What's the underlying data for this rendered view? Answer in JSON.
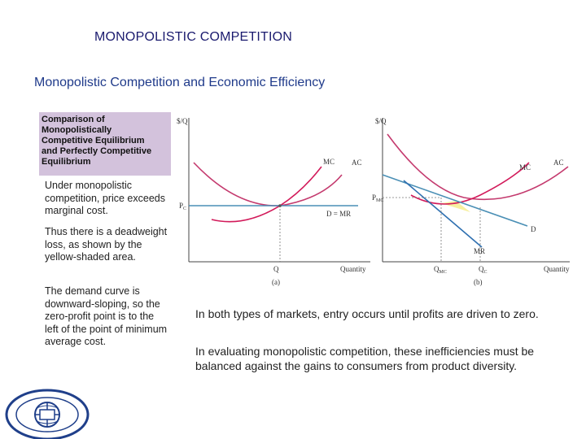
{
  "slide": {
    "title": "MONOPOLISTIC COMPETITION",
    "subtitle": "Monopolistic Competition and Economic Efficiency"
  },
  "caption_lines": [
    "Comparison of",
    "Monopolistically",
    "Competitive Equilibrium",
    "and Perfectly Competitive",
    "Equilibrium"
  ],
  "bullets": [
    "Under monopolistic competition, price exceeds marginal cost.",
    "Thus there is a deadweight loss, as shown by the yellow-shaded area.",
    "The demand curve is downward-sloping, so the zero-profit point is to the left of the point of minimum average cost."
  ],
  "right_text": [
    "In both types of markets, entry occurs until profits are driven to zero.",
    "In evaluating monopolistic competition, these inefficiencies must be balanced against the gains to consumers from product diversity."
  ],
  "chart_data": [
    {
      "type": "line",
      "panel_label": "(a)",
      "ylabel": "$/Q",
      "xlabel": "Quantity",
      "x_tick_labels": [
        "Q"
      ],
      "y_tick_labels": [
        "P_C"
      ],
      "series": [
        {
          "name": "MC",
          "shape": "rising curve through minimum of AC"
        },
        {
          "name": "AC",
          "shape": "U-shaped"
        },
        {
          "name": "D = MR",
          "shape": "horizontal at P_C"
        }
      ],
      "colors": {
        "MC": "#d21a5a",
        "AC": "#c43a6e",
        "demand": "#4a8fb5"
      }
    },
    {
      "type": "line",
      "panel_label": "(b)",
      "ylabel": "$/Q",
      "xlabel": "Quantity",
      "x_tick_labels": [
        "Q_MC",
        "Q_C"
      ],
      "y_tick_labels": [
        "P_MC"
      ],
      "series": [
        {
          "name": "MC"
        },
        {
          "name": "AC"
        },
        {
          "name": "D",
          "shape": "downward-sloping, tangent to AC"
        },
        {
          "name": "MR",
          "shape": "steeper downward-sloping"
        }
      ],
      "shaded_region": "deadweight loss",
      "colors": {
        "MC": "#d21a5a",
        "AC": "#c43a6e",
        "D": "#4a8fb5",
        "MR": "#2e6fb0",
        "dwl": "#f7f0a0"
      }
    }
  ],
  "labels_a": {
    "ylabel": "$/Q",
    "mc": "MC",
    "ac": "AC",
    "dmr": "D = MR",
    "pc": "P",
    "pc_sub": "C",
    "q": "Q",
    "quantity": "Quantity",
    "panel": "(a)"
  },
  "labels_b": {
    "ylabel": "$/Q",
    "mc": "MC",
    "ac": "AC",
    "d": "D",
    "mr": "MR",
    "pmc": "P",
    "pmc_sub": "MC",
    "qmc": "Q",
    "qmc_sub": "MC",
    "qc": "Q",
    "qc_sub": "C",
    "quantity": "Quantity",
    "panel": "(b)"
  }
}
